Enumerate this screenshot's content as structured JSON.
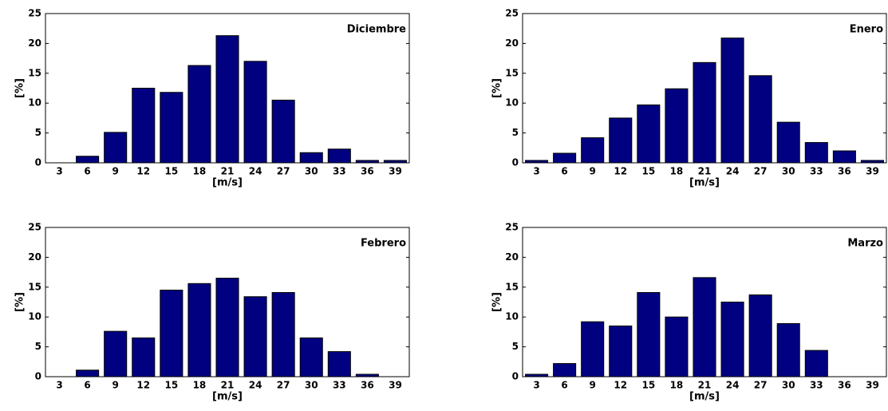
{
  "chart_data": [
    {
      "type": "bar",
      "title": "Diciembre",
      "xlabel": "[m/s]",
      "ylabel": "[%]",
      "color": "#000080",
      "categories": [
        "3",
        "6",
        "9",
        "12",
        "15",
        "18",
        "21",
        "24",
        "27",
        "30",
        "33",
        "36",
        "39"
      ],
      "values": [
        0,
        1.1,
        5.1,
        12.5,
        11.8,
        16.3,
        21.3,
        17,
        10.5,
        1.7,
        2.3,
        0.4,
        0.4
      ],
      "ylim": [
        0,
        25
      ],
      "yticks": [
        0,
        5,
        10,
        15,
        20,
        25
      ]
    },
    {
      "type": "bar",
      "title": "Enero",
      "xlabel": "[m/s]",
      "ylabel": "[%]",
      "color": "#000080",
      "categories": [
        "3",
        "6",
        "9",
        "12",
        "15",
        "18",
        "21",
        "24",
        "27",
        "30",
        "33",
        "36",
        "39"
      ],
      "values": [
        0.4,
        1.6,
        4.2,
        7.5,
        9.7,
        12.4,
        16.8,
        20.9,
        14.6,
        6.8,
        3.4,
        2.0,
        0.4
      ],
      "ylim": [
        0,
        25
      ],
      "yticks": [
        0,
        5,
        10,
        15,
        20,
        25
      ]
    },
    {
      "type": "bar",
      "title": "Febrero",
      "xlabel": "[m/s]",
      "ylabel": "[%]",
      "color": "#000080",
      "categories": [
        "3",
        "6",
        "9",
        "12",
        "15",
        "18",
        "21",
        "24",
        "27",
        "30",
        "33",
        "36",
        "39"
      ],
      "values": [
        0,
        1.1,
        7.6,
        6.5,
        14.5,
        15.6,
        16.5,
        13.4,
        14.1,
        6.5,
        4.2,
        0.4,
        0
      ],
      "ylim": [
        0,
        25
      ],
      "yticks": [
        0,
        5,
        10,
        15,
        20,
        25
      ]
    },
    {
      "type": "bar",
      "title": "Marzo",
      "xlabel": "[m/s]",
      "ylabel": "[%]",
      "color": "#000080",
      "categories": [
        "3",
        "6",
        "9",
        "12",
        "15",
        "18",
        "21",
        "24",
        "27",
        "30",
        "33",
        "36",
        "39"
      ],
      "values": [
        0.4,
        2.2,
        9.2,
        8.5,
        14.1,
        10.0,
        16.6,
        12.5,
        13.7,
        8.9,
        4.4,
        0,
        0
      ],
      "ylim": [
        0,
        25
      ],
      "yticks": [
        0,
        5,
        10,
        15,
        20,
        25
      ]
    }
  ]
}
